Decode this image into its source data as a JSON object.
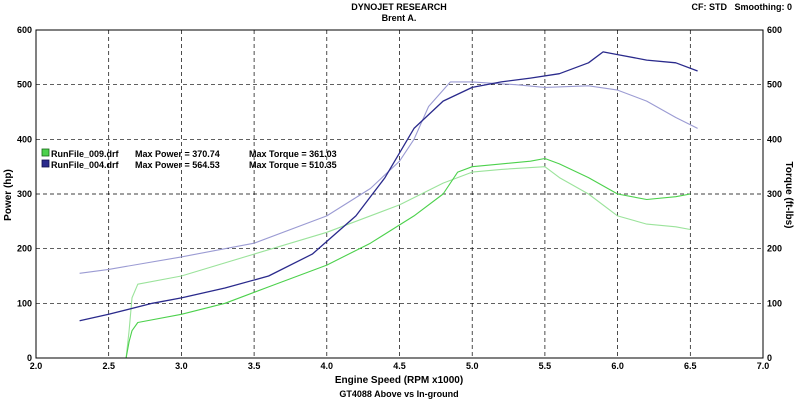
{
  "header": {
    "title": "DYNOJET RESEARCH",
    "subtitle": "Brent A.",
    "settings": "CF: STD   Smoothing: 0"
  },
  "caption": "GT4088 Above vs In-ground",
  "legend": [
    {
      "file": "RunFile_009.drf",
      "max_power_label": "Max Power = 370.74",
      "max_torque_label": "Max Torque = 361.03",
      "color": "#4cd14c"
    },
    {
      "file": "RunFile_004.drf",
      "max_power_label": "Max Power = 564.53",
      "max_torque_label": "Max Torque = 510.35",
      "color": "#2a2a8c"
    }
  ],
  "chart_data": {
    "type": "line",
    "xlabel": "Engine Speed (RPM x1000)",
    "ylabel_left": "Power (hp)",
    "ylabel_right": "Torque (ft-lbs)",
    "xlim": [
      2.0,
      7.0
    ],
    "ylim": [
      0,
      600
    ],
    "grid": true,
    "x_ticks": [
      "2.0",
      "2.5",
      "3.0",
      "3.5",
      "4.0",
      "4.5",
      "5.0",
      "5.5",
      "6.0",
      "6.5",
      "7.0"
    ],
    "y_ticks": [
      "0",
      "100",
      "200",
      "300",
      "400",
      "500",
      "600"
    ],
    "series": [
      {
        "name": "RunFile_009.drf Power",
        "color": "#4cd14c",
        "width": 1.1,
        "x": [
          2.62,
          2.64,
          2.66,
          2.7,
          3.0,
          3.3,
          3.6,
          4.0,
          4.3,
          4.6,
          4.8,
          4.9,
          5.0,
          5.2,
          5.4,
          5.5,
          5.6,
          5.8,
          6.0,
          6.2,
          6.4,
          6.5
        ],
        "y": [
          0,
          30,
          50,
          65,
          80,
          100,
          130,
          170,
          210,
          260,
          300,
          340,
          350,
          355,
          360,
          365,
          355,
          330,
          300,
          290,
          295,
          300
        ]
      },
      {
        "name": "RunFile_009.drf Torque",
        "color": "#9be39b",
        "width": 1.1,
        "x": [
          2.62,
          2.64,
          2.66,
          2.7,
          3.0,
          3.5,
          4.0,
          4.5,
          4.8,
          5.0,
          5.2,
          5.5,
          5.6,
          5.8,
          6.0,
          6.2,
          6.4,
          6.5
        ],
        "y": [
          0,
          50,
          110,
          135,
          150,
          190,
          230,
          280,
          320,
          340,
          345,
          350,
          330,
          300,
          260,
          245,
          240,
          235
        ]
      },
      {
        "name": "RunFile_004.drf Power",
        "color": "#2a2a8c",
        "width": 1.3,
        "x": [
          2.3,
          2.5,
          2.8,
          3.0,
          3.3,
          3.6,
          3.9,
          4.2,
          4.4,
          4.6,
          4.8,
          5.0,
          5.2,
          5.4,
          5.6,
          5.8,
          5.9,
          6.0,
          6.2,
          6.4,
          6.55
        ],
        "y": [
          68,
          80,
          100,
          110,
          128,
          150,
          190,
          260,
          330,
          420,
          470,
          495,
          505,
          512,
          520,
          540,
          560,
          555,
          545,
          540,
          525
        ]
      },
      {
        "name": "RunFile_004.drf Torque",
        "color": "#9b9bd3",
        "width": 1.1,
        "x": [
          2.3,
          2.5,
          3.0,
          3.5,
          4.0,
          4.3,
          4.5,
          4.6,
          4.7,
          4.85,
          5.0,
          5.3,
          5.5,
          5.8,
          6.0,
          6.2,
          6.4,
          6.55
        ],
        "y": [
          155,
          162,
          185,
          210,
          260,
          310,
          360,
          400,
          460,
          505,
          505,
          500,
          495,
          498,
          490,
          470,
          440,
          420
        ]
      }
    ]
  }
}
